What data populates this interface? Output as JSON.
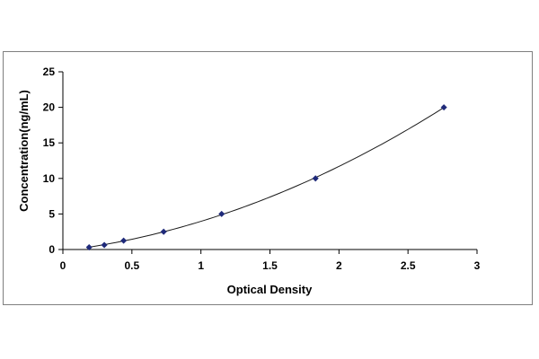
{
  "chart_data": {
    "type": "scatter",
    "title": "",
    "xlabel": "Optical Density",
    "ylabel": "Concentration(ng/mL)",
    "xlim": [
      0,
      3
    ],
    "ylim": [
      0,
      25
    ],
    "xticks": [
      0,
      0.5,
      1,
      1.5,
      2,
      2.5,
      3
    ],
    "xtick_labels": [
      "0",
      "0.5",
      "1",
      "1.5",
      "2",
      "2.5",
      "3"
    ],
    "yticks": [
      0,
      5,
      10,
      15,
      20,
      25
    ],
    "ytick_labels": [
      "0",
      "5",
      "10",
      "15",
      "20",
      "25"
    ],
    "grid": false,
    "legend": "none",
    "series": [
      {
        "x": [
          0.19,
          0.3,
          0.44,
          0.73,
          1.15,
          1.83,
          2.76
        ],
        "y": [
          0.31,
          0.63,
          1.25,
          2.5,
          5,
          10,
          20
        ],
        "marker_color": "#1f2a7a",
        "trendline": "polynomial"
      }
    ],
    "curve_color": "#1a1a1a"
  }
}
